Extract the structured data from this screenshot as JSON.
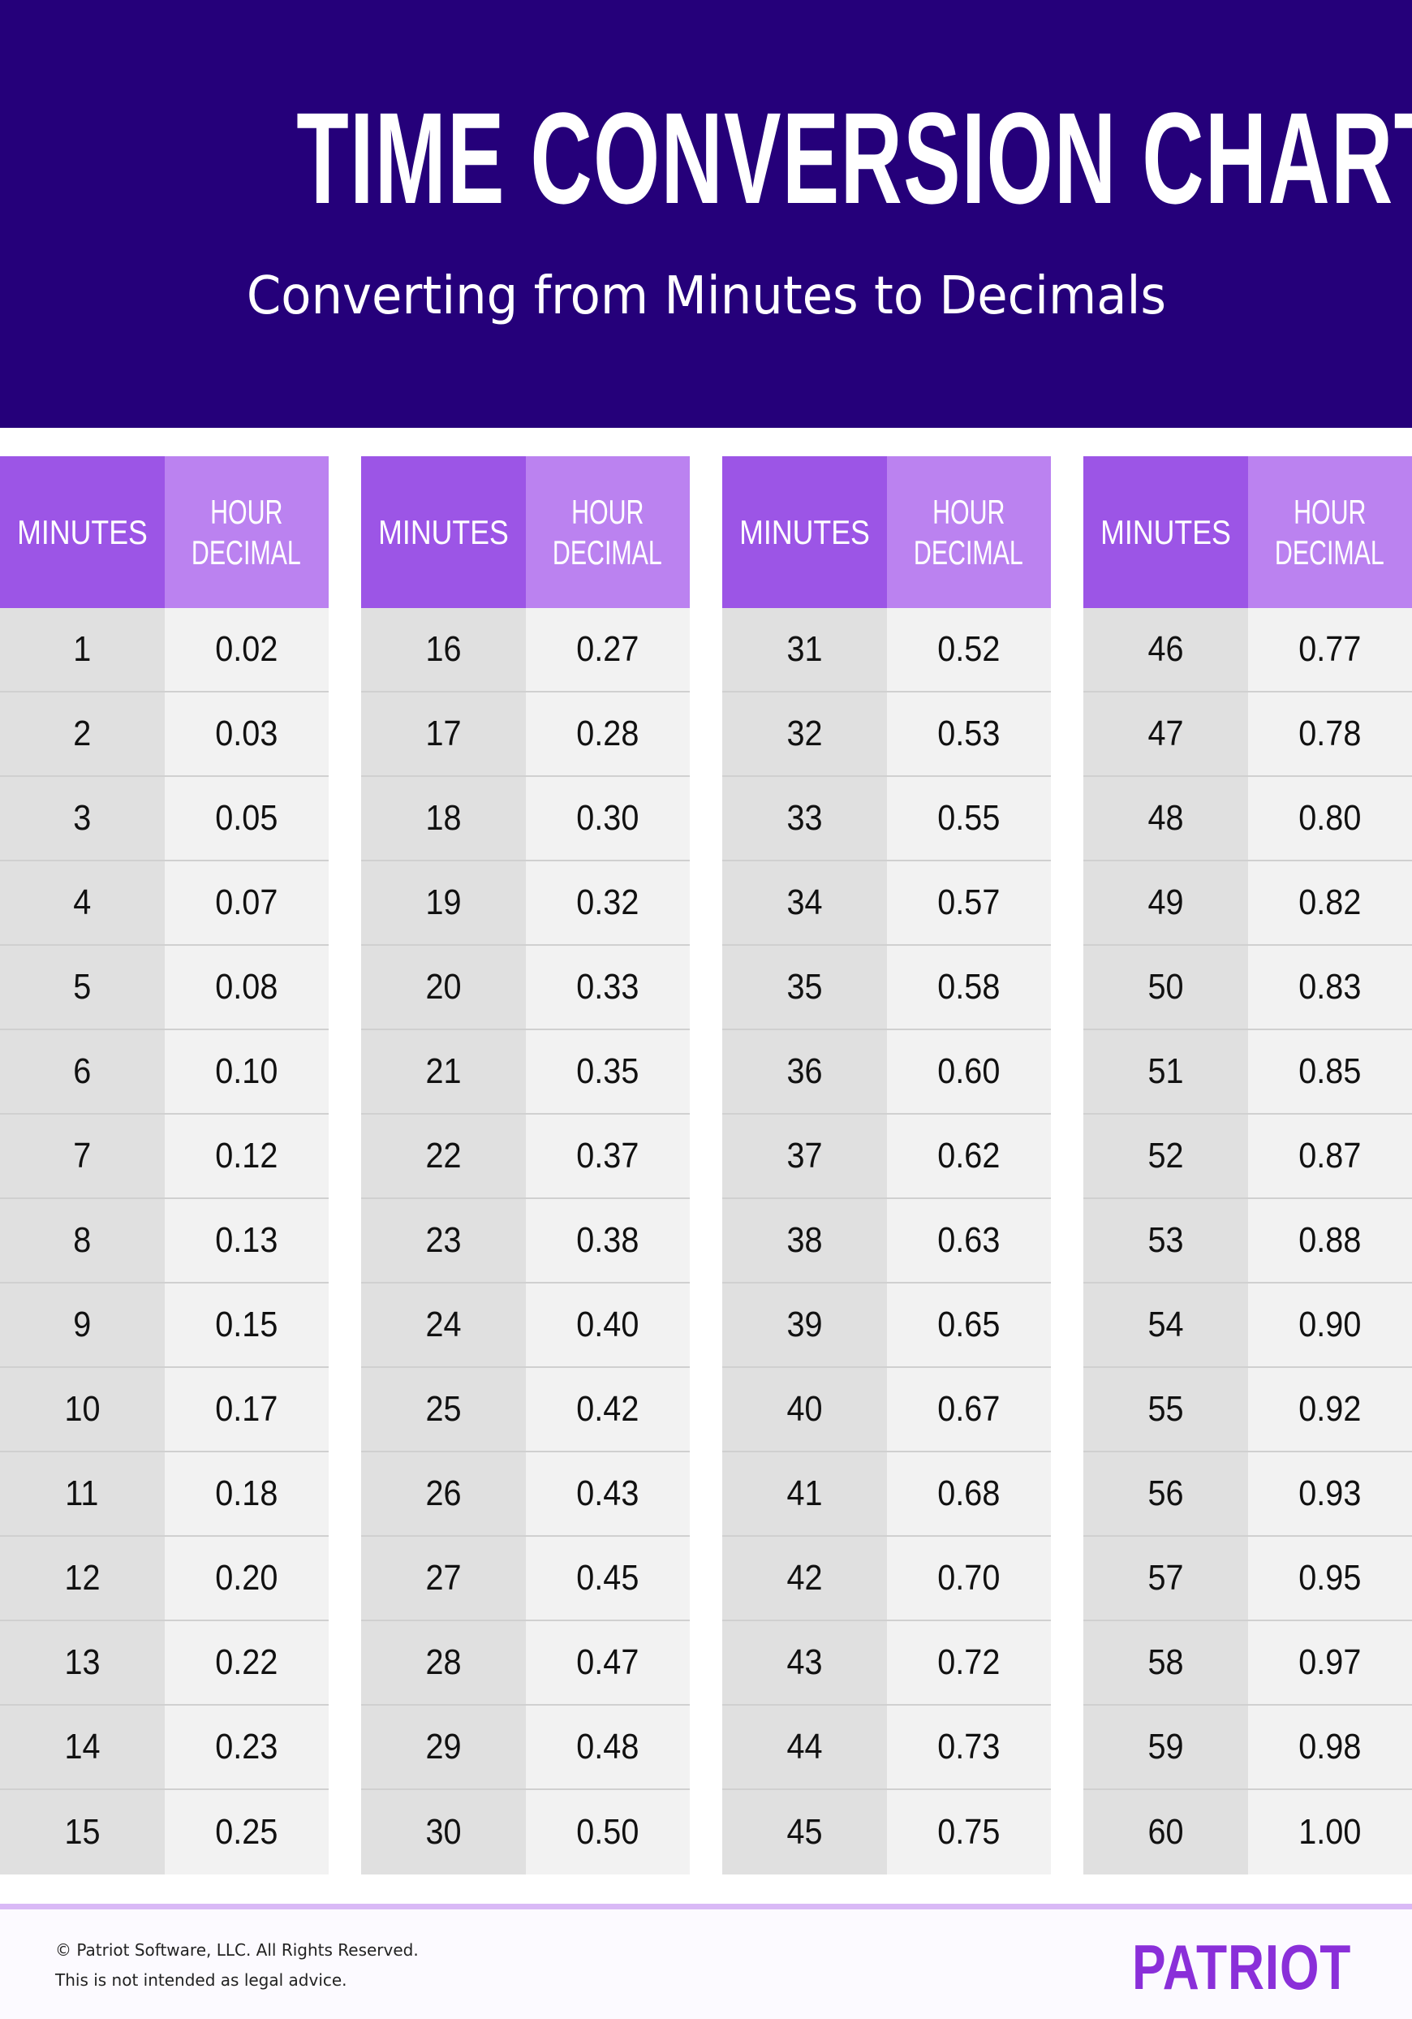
{
  "header": {
    "title": "TIME CONVERSION CHART",
    "subtitle": "Converting from Minutes to Decimals"
  },
  "columns": {
    "minutes": "MINUTES",
    "decimal_line1": "HOUR",
    "decimal_line2": "DECIMAL"
  },
  "tables": [
    {
      "rows": [
        [
          "1",
          "0.02"
        ],
        [
          "2",
          "0.03"
        ],
        [
          "3",
          "0.05"
        ],
        [
          "4",
          "0.07"
        ],
        [
          "5",
          "0.08"
        ],
        [
          "6",
          "0.10"
        ],
        [
          "7",
          "0.12"
        ],
        [
          "8",
          "0.13"
        ],
        [
          "9",
          "0.15"
        ],
        [
          "10",
          "0.17"
        ],
        [
          "11",
          "0.18"
        ],
        [
          "12",
          "0.20"
        ],
        [
          "13",
          "0.22"
        ],
        [
          "14",
          "0.23"
        ],
        [
          "15",
          "0.25"
        ]
      ]
    },
    {
      "rows": [
        [
          "16",
          "0.27"
        ],
        [
          "17",
          "0.28"
        ],
        [
          "18",
          "0.30"
        ],
        [
          "19",
          "0.32"
        ],
        [
          "20",
          "0.33"
        ],
        [
          "21",
          "0.35"
        ],
        [
          "22",
          "0.37"
        ],
        [
          "23",
          "0.38"
        ],
        [
          "24",
          "0.40"
        ],
        [
          "25",
          "0.42"
        ],
        [
          "26",
          "0.43"
        ],
        [
          "27",
          "0.45"
        ],
        [
          "28",
          "0.47"
        ],
        [
          "29",
          "0.48"
        ],
        [
          "30",
          "0.50"
        ]
      ]
    },
    {
      "rows": [
        [
          "31",
          "0.52"
        ],
        [
          "32",
          "0.53"
        ],
        [
          "33",
          "0.55"
        ],
        [
          "34",
          "0.57"
        ],
        [
          "35",
          "0.58"
        ],
        [
          "36",
          "0.60"
        ],
        [
          "37",
          "0.62"
        ],
        [
          "38",
          "0.63"
        ],
        [
          "39",
          "0.65"
        ],
        [
          "40",
          "0.67"
        ],
        [
          "41",
          "0.68"
        ],
        [
          "42",
          "0.70"
        ],
        [
          "43",
          "0.72"
        ],
        [
          "44",
          "0.73"
        ],
        [
          "45",
          "0.75"
        ]
      ]
    },
    {
      "rows": [
        [
          "46",
          "0.77"
        ],
        [
          "47",
          "0.78"
        ],
        [
          "48",
          "0.80"
        ],
        [
          "49",
          "0.82"
        ],
        [
          "50",
          "0.83"
        ],
        [
          "51",
          "0.85"
        ],
        [
          "52",
          "0.87"
        ],
        [
          "53",
          "0.88"
        ],
        [
          "54",
          "0.90"
        ],
        [
          "55",
          "0.92"
        ],
        [
          "56",
          "0.93"
        ],
        [
          "57",
          "0.95"
        ],
        [
          "58",
          "0.97"
        ],
        [
          "59",
          "0.98"
        ],
        [
          "60",
          "1.00"
        ]
      ]
    }
  ],
  "footer": {
    "copyright": "© Patriot Software, LLC. All Rights Reserved.",
    "disclaimer": "This is not intended as legal advice.",
    "logo": "PATRIOT"
  },
  "colors": {
    "header_bg": "#25007a",
    "minutes_header": "#9c55e6",
    "decimal_header": "#bb82f0",
    "logo": "#8a2fd9"
  }
}
